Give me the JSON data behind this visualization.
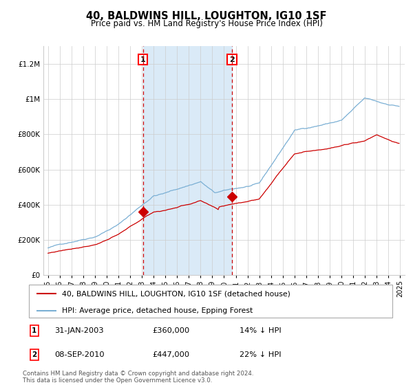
{
  "title": "40, BALDWINS HILL, LOUGHTON, IG10 1SF",
  "subtitle": "Price paid vs. HM Land Registry's House Price Index (HPI)",
  "ylim": [
    0,
    1300000
  ],
  "yticks": [
    0,
    200000,
    400000,
    600000,
    800000,
    1000000,
    1200000
  ],
  "ytick_labels": [
    "£0",
    "£200K",
    "£400K",
    "£600K",
    "£800K",
    "£1M",
    "£1.2M"
  ],
  "purchase1_date": 2003.08,
  "purchase1_price": 360000,
  "purchase2_date": 2010.68,
  "purchase2_price": 447000,
  "shade_color": "#daeaf7",
  "hpi_color": "#7aafd4",
  "price_color": "#cc0000",
  "vline_color": "#cc0000",
  "grid_color": "#cccccc",
  "legend1_label": "40, BALDWINS HILL, LOUGHTON, IG10 1SF (detached house)",
  "legend2_label": "HPI: Average price, detached house, Epping Forest",
  "footnote": "Contains HM Land Registry data © Crown copyright and database right 2024.\nThis data is licensed under the Open Government Licence v3.0.",
  "annotation1_date": "31-JAN-2003",
  "annotation1_price": "£360,000",
  "annotation1_hpi": "14% ↓ HPI",
  "annotation2_date": "08-SEP-2010",
  "annotation2_price": "£447,000",
  "annotation2_hpi": "22% ↓ HPI"
}
